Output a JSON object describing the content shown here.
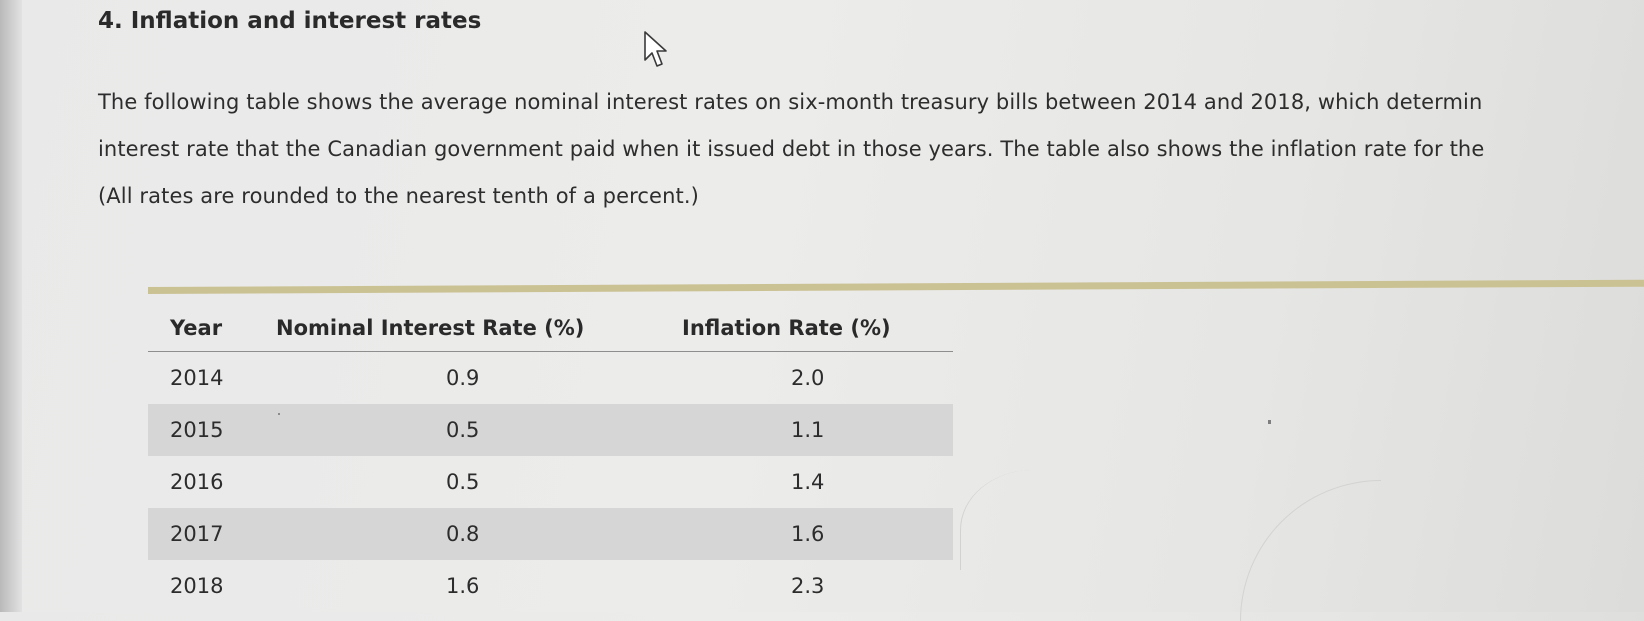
{
  "question": {
    "title": "4. Inflation and interest rates",
    "paragraph_lines": [
      "The following table shows the average nominal interest rates on six-month treasury bills between 2014 and 2018, which determin",
      "interest rate that the Canadian government paid when it issued debt in those years. The table also shows the inflation rate for the",
      "(All rates are rounded to the nearest tenth of a percent.)"
    ]
  },
  "table": {
    "headers": [
      "Year",
      "Nominal Interest Rate (%)",
      "Inflation Rate (%)"
    ],
    "rows": [
      [
        "2014",
        "0.9",
        "2.0"
      ],
      [
        "2015",
        "0.5",
        "1.1"
      ],
      [
        "2016",
        "0.5",
        "1.4"
      ],
      [
        "2017",
        "0.8",
        "1.6"
      ],
      [
        "2018",
        "1.6",
        "2.3"
      ]
    ]
  },
  "colors": {
    "accent_rule": "#cbc294",
    "shaded_row": "#d6d6d6"
  },
  "icons": {
    "pointer": "mouse-pointer-icon"
  }
}
